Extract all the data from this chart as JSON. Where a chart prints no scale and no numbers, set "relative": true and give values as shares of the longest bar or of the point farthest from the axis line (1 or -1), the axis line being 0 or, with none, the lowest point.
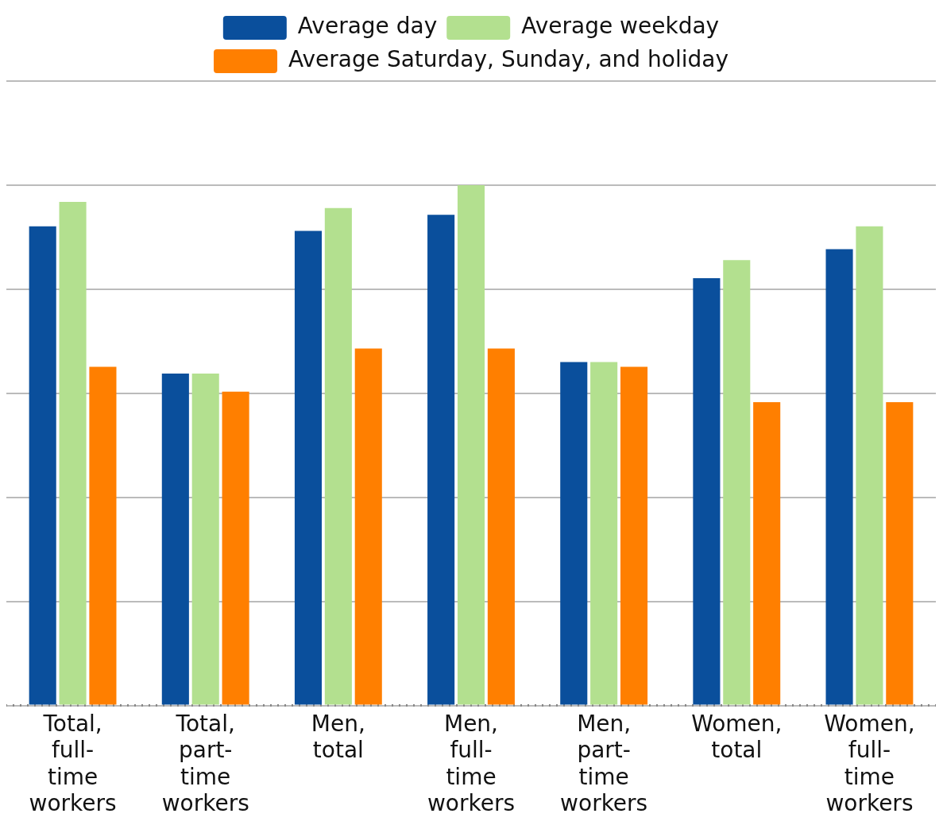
{
  "chart_data": {
    "type": "bar",
    "relative": true,
    "grid": "y",
    "legend": "top",
    "categories": [
      "Total, full-time workers",
      "Total, part-time workers",
      "Men, total",
      "Men, full-time workers",
      "Men, part-time workers",
      "Women, total",
      "Women, full-time workers"
    ],
    "series": [
      {
        "name": "Average day",
        "color": "#0a4f9c",
        "values": [
          0.921,
          0.638,
          0.912,
          0.943,
          0.66,
          0.821,
          0.877
        ]
      },
      {
        "name": "Average weekday",
        "color": "#b3e08f",
        "values": [
          0.968,
          0.638,
          0.956,
          1,
          0.66,
          0.856,
          0.921
        ]
      },
      {
        "name": "Average Saturday, Sunday, and holiday",
        "color": "#ff7f00",
        "values": [
          0.651,
          0.603,
          0.686,
          0.686,
          0.651,
          0.583,
          0.583
        ]
      }
    ]
  }
}
